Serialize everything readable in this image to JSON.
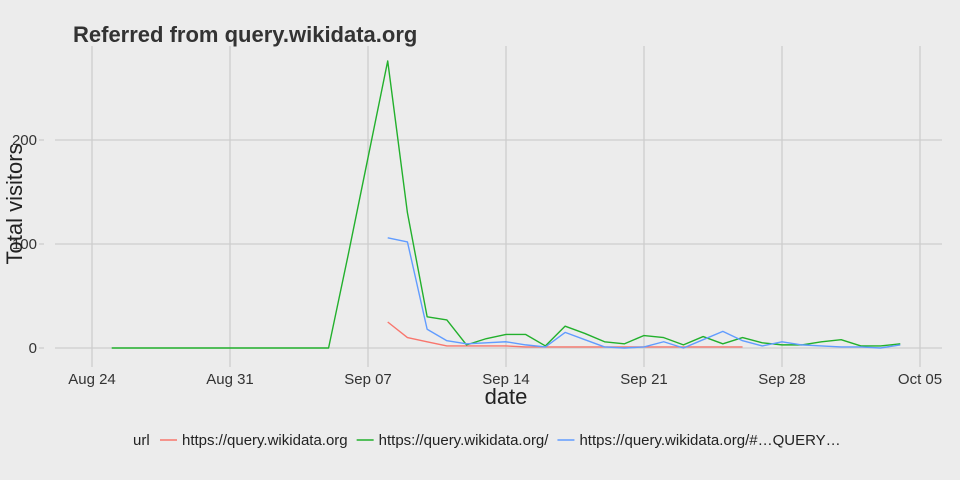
{
  "chart_data": {
    "type": "line",
    "title": "Referred from query.wikidata.org",
    "xlabel": "date",
    "ylabel": "Total visitors",
    "legend_title": "url",
    "legend_position": "bottom",
    "grid": true,
    "x_range": [
      "2015-08-24",
      "2015-10-05"
    ],
    "ylim": [
      0,
      280
    ],
    "x_ticks": [
      {
        "date": "2015-08-24",
        "label": "Aug 24"
      },
      {
        "date": "2015-08-31",
        "label": "Aug 31"
      },
      {
        "date": "2015-09-07",
        "label": "Sep 07"
      },
      {
        "date": "2015-09-14",
        "label": "Sep 14"
      },
      {
        "date": "2015-09-21",
        "label": "Sep 21"
      },
      {
        "date": "2015-09-28",
        "label": "Sep 28"
      },
      {
        "date": "2015-10-05",
        "label": "Oct 05"
      }
    ],
    "y_ticks": [
      0,
      100,
      200
    ],
    "series": [
      {
        "name": "https://query.wikidata.org",
        "color": "#f8766d",
        "points": [
          [
            "2015-09-08",
            25
          ],
          [
            "2015-09-09",
            10
          ],
          [
            "2015-09-10",
            6
          ],
          [
            "2015-09-11",
            2
          ],
          [
            "2015-09-12",
            2
          ],
          [
            "2015-09-13",
            2
          ],
          [
            "2015-09-14",
            2
          ],
          [
            "2015-09-15",
            1
          ],
          [
            "2015-09-16",
            1
          ],
          [
            "2015-09-17",
            1
          ],
          [
            "2015-09-18",
            1
          ],
          [
            "2015-09-19",
            1
          ],
          [
            "2015-09-20",
            1
          ],
          [
            "2015-09-21",
            1
          ],
          [
            "2015-09-22",
            1
          ],
          [
            "2015-09-23",
            1
          ],
          [
            "2015-09-24",
            1
          ],
          [
            "2015-09-25",
            1
          ],
          [
            "2015-09-26",
            1
          ]
        ]
      },
      {
        "name": "https://query.wikidata.org/",
        "color": "#22b02c",
        "points": [
          [
            "2015-08-25",
            0
          ],
          [
            "2015-08-26",
            0
          ],
          [
            "2015-08-27",
            0
          ],
          [
            "2015-08-28",
            0
          ],
          [
            "2015-08-29",
            0
          ],
          [
            "2015-08-30",
            0
          ],
          [
            "2015-08-31",
            0
          ],
          [
            "2015-09-01",
            0
          ],
          [
            "2015-09-02",
            0
          ],
          [
            "2015-09-03",
            0
          ],
          [
            "2015-09-04",
            0
          ],
          [
            "2015-09-05",
            0
          ],
          [
            "2015-09-06",
            90
          ],
          [
            "2015-09-07",
            183
          ],
          [
            "2015-09-08",
            276
          ],
          [
            "2015-09-09",
            130
          ],
          [
            "2015-09-10",
            30
          ],
          [
            "2015-09-11",
            27
          ],
          [
            "2015-09-12",
            3
          ],
          [
            "2015-09-13",
            9
          ],
          [
            "2015-09-14",
            13
          ],
          [
            "2015-09-15",
            13
          ],
          [
            "2015-09-16",
            2
          ],
          [
            "2015-09-17",
            21
          ],
          [
            "2015-09-18",
            14
          ],
          [
            "2015-09-19",
            6
          ],
          [
            "2015-09-20",
            4
          ],
          [
            "2015-09-21",
            12
          ],
          [
            "2015-09-22",
            10
          ],
          [
            "2015-09-23",
            3
          ],
          [
            "2015-09-24",
            11
          ],
          [
            "2015-09-25",
            4
          ],
          [
            "2015-09-26",
            10
          ],
          [
            "2015-09-27",
            5
          ],
          [
            "2015-09-28",
            3
          ],
          [
            "2015-09-29",
            3
          ],
          [
            "2015-09-30",
            6
          ],
          [
            "2015-10-01",
            8
          ],
          [
            "2015-10-02",
            2
          ],
          [
            "2015-10-03",
            2
          ],
          [
            "2015-10-04",
            4
          ]
        ]
      },
      {
        "name": "https://query.wikidata.org/#…QUERY…",
        "color": "#619cff",
        "points": [
          [
            "2015-09-08",
            106
          ],
          [
            "2015-09-09",
            102
          ],
          [
            "2015-09-10",
            18
          ],
          [
            "2015-09-11",
            7
          ],
          [
            "2015-09-12",
            4
          ],
          [
            "2015-09-13",
            5
          ],
          [
            "2015-09-14",
            6
          ],
          [
            "2015-09-15",
            3
          ],
          [
            "2015-09-16",
            1
          ],
          [
            "2015-09-17",
            15
          ],
          [
            "2015-09-18",
            8
          ],
          [
            "2015-09-19",
            1
          ],
          [
            "2015-09-20",
            0
          ],
          [
            "2015-09-21",
            1
          ],
          [
            "2015-09-22",
            6
          ],
          [
            "2015-09-23",
            0
          ],
          [
            "2015-09-24",
            8
          ],
          [
            "2015-09-25",
            16
          ],
          [
            "2015-09-26",
            7
          ],
          [
            "2015-09-27",
            2
          ],
          [
            "2015-09-28",
            6
          ],
          [
            "2015-09-29",
            3
          ],
          [
            "2015-09-30",
            2
          ],
          [
            "2015-10-01",
            1
          ],
          [
            "2015-10-02",
            1
          ],
          [
            "2015-10-03",
            0
          ],
          [
            "2015-10-04",
            3
          ]
        ]
      }
    ]
  }
}
